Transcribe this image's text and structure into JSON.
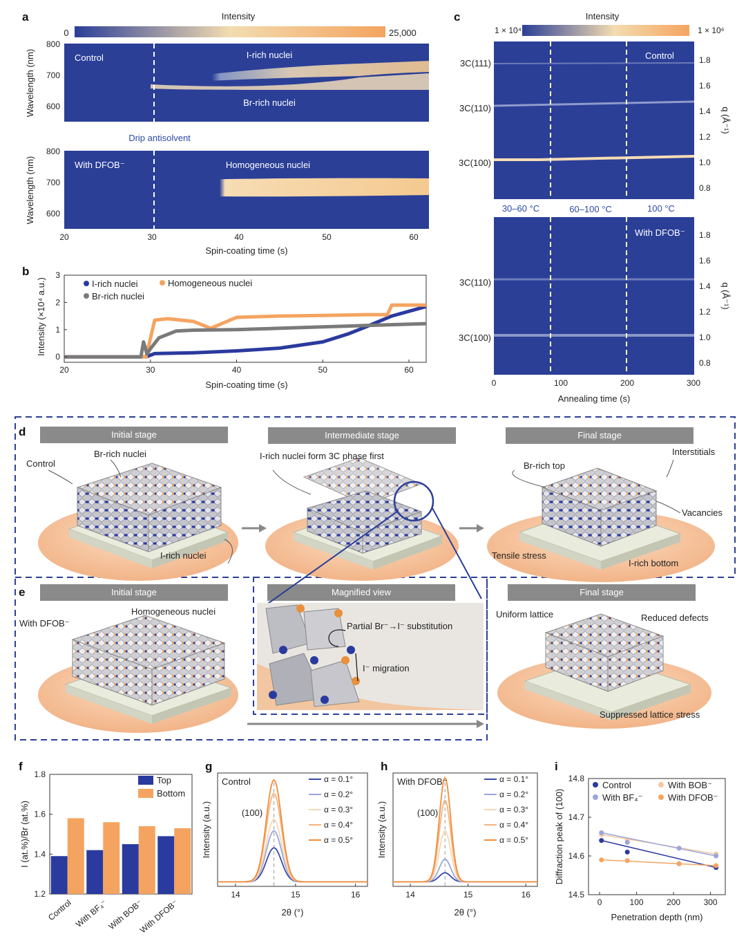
{
  "figure": {
    "panel_labels": [
      "a",
      "b",
      "c",
      "d",
      "e",
      "f",
      "g",
      "h",
      "i"
    ]
  },
  "panel_a": {
    "colorbar_title": "Intensity",
    "colorbar_min": "0",
    "colorbar_max": "25,000",
    "ylabel": "Wavelength (nm)",
    "xlabel": "Spin-coating time (s)",
    "yticks": [
      "800",
      "700",
      "600"
    ],
    "xticks": [
      "20",
      "30",
      "40",
      "50",
      "60"
    ],
    "top_label": "Control",
    "top_upper": "I-rich nuclei",
    "top_lower": "Br-rich nuclei",
    "drip_label": "Drip antisolvent",
    "bottom_label": "With DFOB⁻",
    "bottom_center": "Homogeneous nuclei"
  },
  "panel_b": {
    "ylabel": "Intensity (×10⁴ a.u.)",
    "xlabel": "Spin-coating time (s)",
    "legend": [
      "I-rich nuclei",
      "Homogeneous nuclei",
      "Br-rich nuclei"
    ]
  },
  "panel_c": {
    "colorbar_title": "Intensity",
    "colorbar_min": "1 × 10⁴",
    "colorbar_max": "1 × 10⁶",
    "ylabel_right": "q (Å⁻¹)",
    "xlabel": "Annealing time (s)",
    "qticks": [
      "1.8",
      "1.6",
      "1.4",
      "1.2",
      "1.0",
      "0.8"
    ],
    "xticks": [
      "0",
      "100",
      "200",
      "300"
    ],
    "top_peaks": [
      "3C(111)",
      "3C(110)",
      "3C(100)"
    ],
    "bottom_peaks": [
      "3C(110)",
      "3C(100)"
    ],
    "top_label": "Control",
    "bottom_label": "With DFOB⁻",
    "temps": [
      "30–60 °C",
      "60–100 °C",
      "100 °C"
    ]
  },
  "panel_d": {
    "stages": [
      "Initial stage",
      "Intermediate stage",
      "Final stage"
    ],
    "control": "Control",
    "br_nuclei": "Br-rich nuclei",
    "i_nuclei": "I-rich nuclei",
    "i_first": "I-rich nuclei form 3C phase first",
    "br_top": "Br-rich top",
    "interstitials": "Interstitials",
    "vacancies": "Vacancies",
    "tensile": "Tensile stress",
    "i_bottom": "I-rich bottom"
  },
  "panel_e": {
    "stages": [
      "Initial stage",
      "Magnified view",
      "Final stage"
    ],
    "with_dfob": "With DFOB⁻",
    "homog": "Homogeneous nuclei",
    "substitution": "Partial Br⁻→I⁻ substitution",
    "migration": "I⁻ migration",
    "uniform": "Uniform lattice",
    "reduced": "Reduced defects",
    "suppressed": "Suppressed lattice stress"
  },
  "panel_g": {
    "title": "Control",
    "peak": "(100)",
    "ylabel": "Intensity (a.u.)",
    "xlabel": "2θ (°)",
    "xticks": [
      "14",
      "15",
      "16"
    ],
    "legend": [
      "α = 0.1°",
      "α = 0.2°",
      "α = 0.3°",
      "α = 0.4°",
      "α = 0.5°"
    ]
  },
  "panel_h": {
    "title": "With DFOB⁻",
    "peak": "(100)",
    "ylabel": "Intensity (a.u.)",
    "xlabel": "2θ (°)",
    "xticks": [
      "14",
      "15",
      "16"
    ],
    "legend": [
      "α = 0.1°",
      "α = 0.2°",
      "α = 0.3°",
      "α = 0.4°",
      "α = 0.5°"
    ]
  },
  "panel_i": {
    "ylabel": "Diffraction peak of (100)",
    "xlabel": "Penetration depth (nm)",
    "yticks": [
      "14.8",
      "14.7",
      "14.6",
      "14.5"
    ],
    "xticks": [
      "0",
      "100",
      "200",
      "300"
    ],
    "legend": [
      "Control",
      "With BOB⁻",
      "With BF₄⁻",
      "With DFOB⁻"
    ]
  },
  "colors": {
    "blue": "#2a3a9e",
    "orange": "#f4a460",
    "gray": "#7a7a7a",
    "map_dark": "#2b3f97",
    "map_light": "#f5d9a6"
  },
  "chart_data": [
    {
      "id": "b",
      "type": "line",
      "xlabel": "Spin-coating time (s)",
      "ylabel": "Intensity (×10⁴ a.u.)",
      "xlim": [
        20,
        62
      ],
      "ylim": [
        -0.2,
        3
      ],
      "xticks": [
        20,
        30,
        40,
        50,
        60
      ],
      "yticks": [
        0,
        1,
        2,
        3
      ],
      "series": [
        {
          "name": "I-rich nuclei",
          "color": "#2a3a9e",
          "x": [
            20,
            29.5,
            30.5,
            35,
            40,
            45,
            50,
            53,
            55,
            58,
            62
          ],
          "y": [
            0,
            0,
            0.12,
            0.15,
            0.22,
            0.32,
            0.55,
            0.85,
            1.1,
            1.5,
            1.85
          ]
        },
        {
          "name": "Homogeneous nuclei",
          "color": "#f4a460",
          "x": [
            20,
            29.5,
            30.5,
            32,
            35,
            37,
            40,
            45,
            50,
            55,
            57.5,
            58,
            62
          ],
          "y": [
            0,
            0,
            1.35,
            1.4,
            1.3,
            1.05,
            1.45,
            1.5,
            1.52,
            1.55,
            1.55,
            1.9,
            1.9
          ]
        },
        {
          "name": "Br-rich nuclei",
          "color": "#7a7a7a",
          "x": [
            20,
            28.9,
            29.2,
            29.6,
            30,
            31,
            33,
            35,
            40,
            45,
            50,
            55,
            60,
            62
          ],
          "y": [
            0,
            0,
            0.55,
            0.1,
            0.3,
            0.7,
            0.95,
            0.98,
            1.0,
            1.05,
            1.1,
            1.15,
            1.2,
            1.22
          ]
        }
      ]
    },
    {
      "id": "f",
      "type": "bar",
      "categories": [
        "Control",
        "With BF₄⁻",
        "With BOB⁻",
        "With DFOB⁻"
      ],
      "ylabel": "I (at.%)/Br (at.%)",
      "ylim": [
        1.2,
        1.8
      ],
      "yticks": [
        1.2,
        1.4,
        1.6,
        1.8
      ],
      "series": [
        {
          "name": "Top",
          "color": "#2a3a9e",
          "values": [
            1.39,
            1.42,
            1.45,
            1.49
          ]
        },
        {
          "name": "Bottom",
          "color": "#f4a460",
          "values": [
            1.58,
            1.56,
            1.54,
            1.53
          ]
        }
      ]
    },
    {
      "id": "g",
      "type": "line",
      "title": "Control",
      "xlabel": "2θ (°)",
      "ylabel": "Intensity (a.u.)",
      "xlim": [
        13.7,
        16.2
      ],
      "center": 14.64,
      "width": 0.18,
      "series": [
        {
          "name": "α = 0.1°",
          "color": "#3848a8",
          "amplitude": 0.3
        },
        {
          "name": "α = 0.2°",
          "color": "#9aa6dc",
          "amplitude": 0.45
        },
        {
          "name": "α = 0.3°",
          "color": "#f6d7b4",
          "amplitude": 0.55
        },
        {
          "name": "α = 0.4°",
          "color": "#f6b27c",
          "amplitude": 0.78
        },
        {
          "name": "α = 0.5°",
          "color": "#f28c3a",
          "amplitude": 0.9
        }
      ]
    },
    {
      "id": "h",
      "type": "line",
      "title": "With DFOB⁻",
      "xlabel": "2θ (°)",
      "ylabel": "Intensity (a.u.)",
      "xlim": [
        13.7,
        16.2
      ],
      "center": 14.6,
      "width": 0.14,
      "series": [
        {
          "name": "α = 0.1°",
          "color": "#3848a8",
          "amplitude": 0.08
        },
        {
          "name": "α = 0.2°",
          "color": "#9aa6dc",
          "amplitude": 0.2
        },
        {
          "name": "α = 0.3°",
          "color": "#f6d7b4",
          "amplitude": 0.45
        },
        {
          "name": "α = 0.4°",
          "color": "#f6b27c",
          "amplitude": 0.72
        },
        {
          "name": "α = 0.5°",
          "color": "#f28c3a",
          "amplitude": 0.92
        }
      ]
    },
    {
      "id": "i",
      "type": "scatter",
      "xlabel": "Penetration depth (nm)",
      "ylabel": "Diffraction peak of (100)",
      "xlim": [
        -30,
        340
      ],
      "ylim": [
        14.5,
        14.8
      ],
      "series": [
        {
          "name": "Control",
          "color": "#2a3a9e",
          "x": [
            5,
            75,
            215,
            315
          ],
          "y": [
            14.64,
            14.61,
            14.58,
            14.57
          ]
        },
        {
          "name": "With BOB⁻",
          "color": "#f6c7a0",
          "x": [
            5,
            75,
            215,
            315
          ],
          "y": [
            14.655,
            14.64,
            14.62,
            14.605
          ]
        },
        {
          "name": "With BF₄⁻",
          "color": "#9aa6dc",
          "x": [
            5,
            75,
            215,
            315
          ],
          "y": [
            14.66,
            14.635,
            14.62,
            14.6
          ]
        },
        {
          "name": "With DFOB⁻",
          "color": "#f4a460",
          "x": [
            5,
            75,
            215,
            315
          ],
          "y": [
            14.59,
            14.588,
            14.58,
            14.575
          ]
        }
      ]
    }
  ]
}
